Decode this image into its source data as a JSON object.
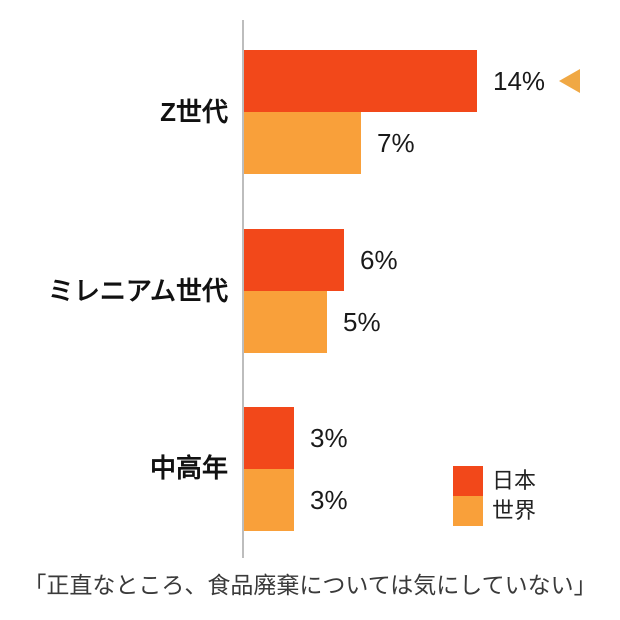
{
  "chart_data": {
    "type": "bar",
    "orientation": "horizontal",
    "title": "",
    "caption": "「正直なところ、食品廃棄については気にしていない」",
    "categories": [
      "Z世代",
      "ミレニアム世代",
      "中高年"
    ],
    "series": [
      {
        "name": "日本",
        "color": "#f2481a",
        "values": [
          14,
          6,
          3
        ],
        "value_labels": [
          "14%",
          "6%",
          "3%"
        ]
      },
      {
        "name": "世界",
        "color": "#f9a03a",
        "values": [
          7,
          5,
          3
        ],
        "value_labels": [
          "7%",
          "5%",
          "3%"
        ]
      }
    ],
    "xlim": [
      0,
      14.2
    ],
    "grid": false,
    "legend_position": "bottom-right",
    "annotation": {
      "shape": "left-pointing-triangle",
      "color": "#f0a844",
      "attached_to": "Z世代 日本 14%"
    },
    "axis_line_color": "#bdbdbd"
  }
}
